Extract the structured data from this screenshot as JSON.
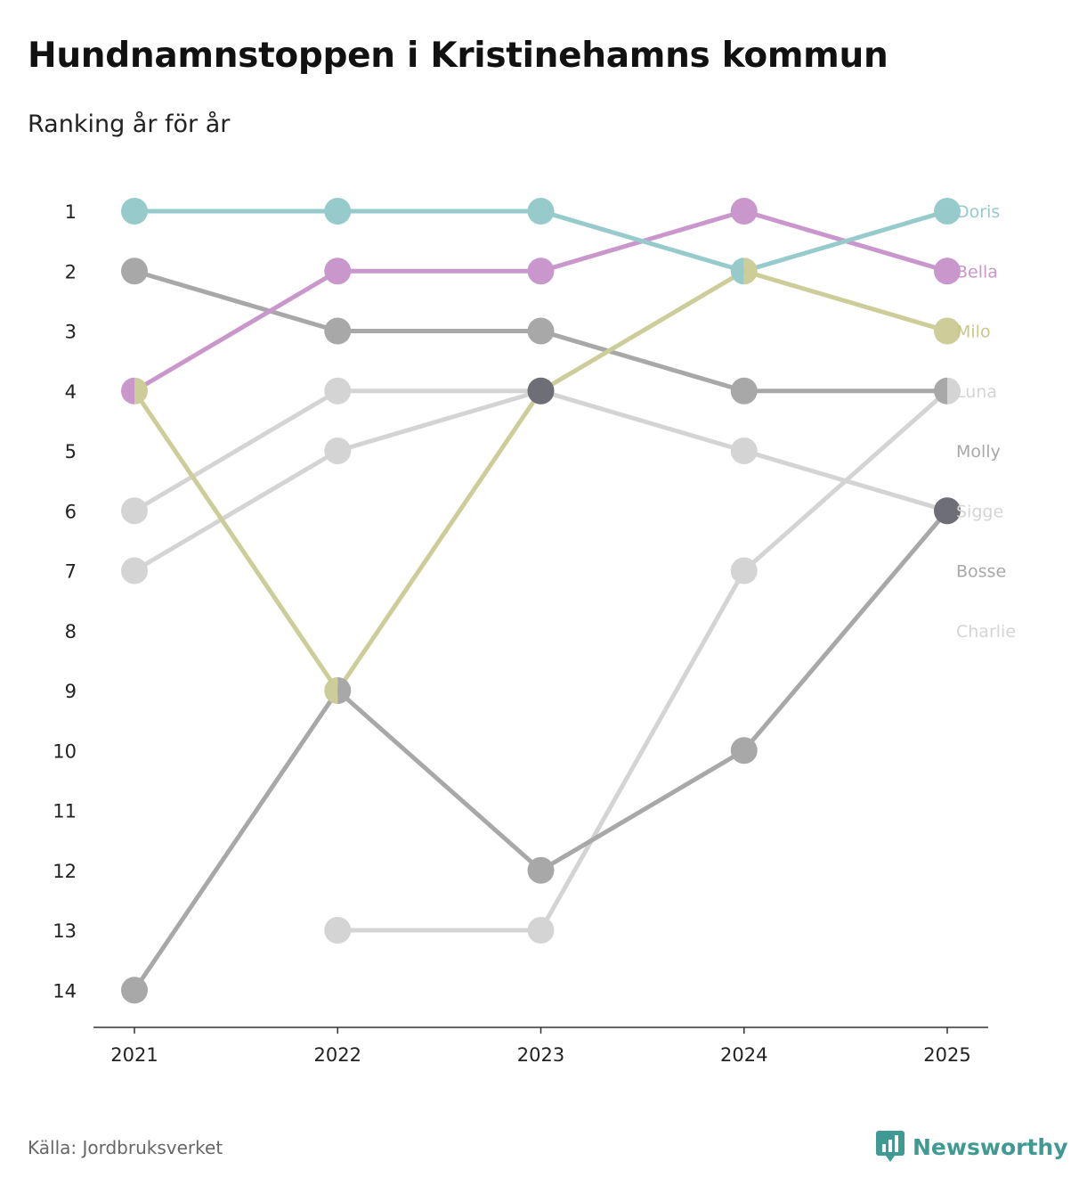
{
  "title": "Hundnamnstoppen i Kristinehamns kommun",
  "subtitle": "Ranking år för år",
  "source": "Källa: Jordbruksverket",
  "brand": "Newsworthy",
  "colors": {
    "brand": "#3f9a93"
  },
  "chart_data": {
    "type": "line",
    "kind": "bump-chart",
    "categories": [
      "2021",
      "2022",
      "2023",
      "2024",
      "2025"
    ],
    "y_ticks": [
      "1",
      "2",
      "3",
      "4",
      "5",
      "6",
      "7",
      "8",
      "9",
      "10",
      "11",
      "12",
      "13",
      "14"
    ],
    "ylim": [
      1,
      14
    ],
    "y_reversed": true,
    "series": [
      {
        "name": "Charlie",
        "color": "#d4d4d4",
        "values": [
          null,
          13,
          13,
          7,
          4
        ]
      },
      {
        "name": "Sigge",
        "color": "#d4d4d4",
        "values": [
          6,
          4,
          4,
          5,
          6
        ]
      },
      {
        "name": "Luna",
        "color": "#d4d4d4",
        "values": [
          7,
          5,
          4,
          null,
          null
        ]
      },
      {
        "name": "Molly",
        "color": "#a8a8a8",
        "values": [
          2,
          3,
          3,
          4,
          4
        ]
      },
      {
        "name": "Bosse",
        "color": "#a8a8a8",
        "values": [
          14,
          9,
          12,
          10,
          6
        ]
      },
      {
        "name": "Milo",
        "color": "#cccd98",
        "values": [
          4,
          9,
          4,
          2,
          3
        ]
      },
      {
        "name": "Bella",
        "color": "#c997cc",
        "values": [
          4,
          2,
          2,
          1,
          2
        ]
      },
      {
        "name": "Doris",
        "color": "#97cbcb",
        "values": [
          1,
          1,
          1,
          2,
          1
        ]
      }
    ],
    "extra_points": [
      {
        "year": "2023",
        "rank": 4,
        "color": "#6e6e76"
      },
      {
        "year": "2025",
        "rank": 6,
        "color": "#6e6e76"
      }
    ],
    "end_labels": [
      {
        "name": "Doris",
        "rank": 1,
        "color": "#97cbcb"
      },
      {
        "name": "Bella",
        "rank": 2,
        "color": "#c997cc"
      },
      {
        "name": "Milo",
        "rank": 3,
        "color": "#c8c88c"
      },
      {
        "name": "Luna",
        "rank": 4,
        "color": "#d4d4d4"
      },
      {
        "name": "Molly",
        "rank": 5,
        "color": "#a8a8a8"
      },
      {
        "name": "Sigge",
        "rank": 6,
        "color": "#d4d4d4"
      },
      {
        "name": "Bosse",
        "rank": 7,
        "color": "#a8a8a8"
      },
      {
        "name": "Charlie",
        "rank": 8,
        "color": "#d4d4d4"
      }
    ]
  }
}
